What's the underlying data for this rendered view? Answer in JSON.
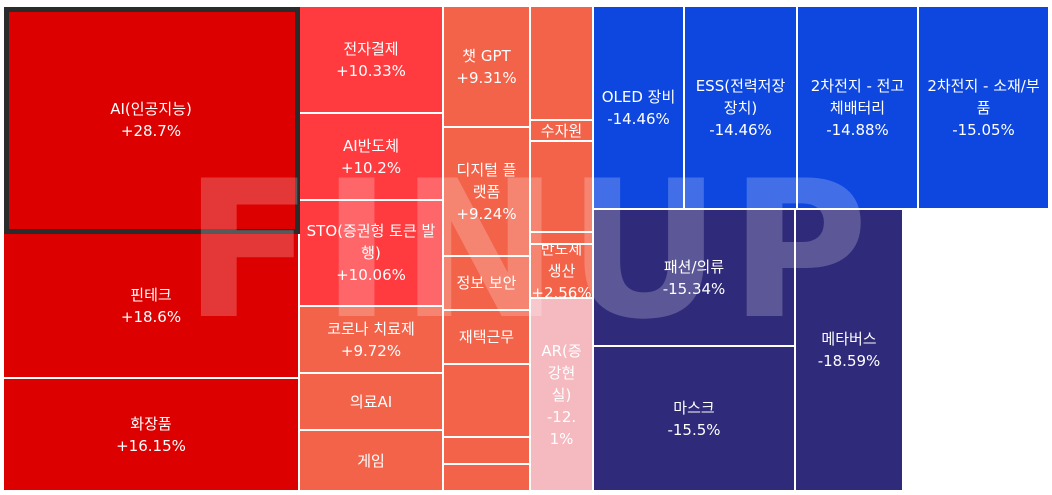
{
  "chart_data": {
    "type": "treemap",
    "watermark": "FINUP",
    "colors": {
      "strong_up": "#dd0000",
      "mid_up": "#ff3b3f",
      "light_up": "#f2634a",
      "pale_up": "#f5b9c0",
      "light_down": "#0d47e0",
      "strong_down": "#2f2a7a"
    },
    "items": [
      {
        "name": "AI(인공지능)",
        "change": "+28.7%",
        "value": 28.7
      },
      {
        "name": "핀테크",
        "change": "+18.6%",
        "value": 18.6
      },
      {
        "name": "화장품",
        "change": "+16.15%",
        "value": 16.15
      },
      {
        "name": "전자결제",
        "change": "+10.33%",
        "value": 10.33
      },
      {
        "name": "AI반도체",
        "change": "+10.2%",
        "value": 10.2
      },
      {
        "name": "STO(증권형 토큰 발행)",
        "change": "+10.06%",
        "value": 10.06
      },
      {
        "name": "코로나 치료제",
        "change": "+9.72%",
        "value": 9.72
      },
      {
        "name": "의료AI",
        "change": "",
        "value": null
      },
      {
        "name": "게임",
        "change": "",
        "value": null
      },
      {
        "name": "챗 GPT",
        "change": "+9.31%",
        "value": 9.31
      },
      {
        "name": "디지털 플랫폼",
        "change": "+9.24%",
        "value": 9.24
      },
      {
        "name": "정보 보안",
        "change": "",
        "value": null
      },
      {
        "name": "재택근무",
        "change": "",
        "value": null
      },
      {
        "name": "",
        "change": "",
        "value": null
      },
      {
        "name": "",
        "change": "",
        "value": null
      },
      {
        "name": "",
        "change": "",
        "value": null
      },
      {
        "name": "",
        "change": "",
        "value": null
      },
      {
        "name": "수자원",
        "change": "",
        "value": null
      },
      {
        "name": "",
        "change": "",
        "value": null
      },
      {
        "name": "",
        "change": "",
        "value": null
      },
      {
        "name": "반도체생산",
        "change": "+2.56%",
        "value": 2.56
      },
      {
        "name": "AR(증강현실)",
        "change": "-12.1%",
        "value": -12.1
      },
      {
        "name": "OLED 장비",
        "change": "-14.46%",
        "value": -14.46
      },
      {
        "name": "ESS(전력저장장치)",
        "change": "-14.46%",
        "value": -14.46
      },
      {
        "name": "2차전지 - 전고체배터리",
        "change": "-14.88%",
        "value": -14.88
      },
      {
        "name": "2차전지 - 소재/부품",
        "change": "-15.05%",
        "value": -15.05
      },
      {
        "name": "패션/의류",
        "change": "-15.34%",
        "value": -15.34
      },
      {
        "name": "마스크",
        "change": "-15.5%",
        "value": -15.5
      },
      {
        "name": "메타버스",
        "change": "-18.59%",
        "value": -18.59
      }
    ]
  }
}
